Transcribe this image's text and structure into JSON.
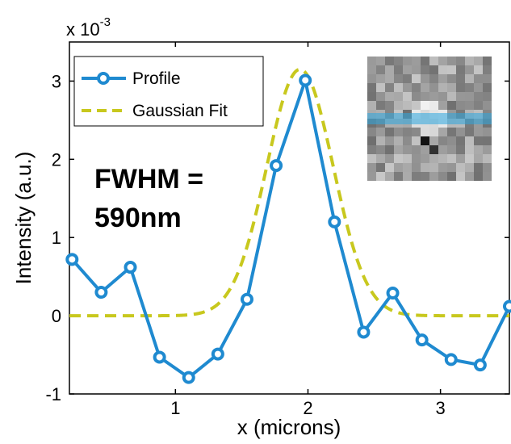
{
  "chart_data": {
    "type": "line",
    "xlabel": "x (microns)",
    "ylabel": "Intensity (a.u.)",
    "y_exponent": {
      "base": "x 10",
      "power": "-3"
    },
    "xlim": [
      0.2,
      3.52
    ],
    "ylim": [
      -1.0,
      3.5
    ],
    "x_ticks": [
      1,
      2,
      3
    ],
    "y_ticks": [
      -1,
      0,
      1,
      2,
      3
    ],
    "grid": false,
    "legend_position": "top-left",
    "series": [
      {
        "name": "Profile",
        "style": "solid line with circle markers",
        "color": "#1f8ad0",
        "x": [
          0.22,
          0.44,
          0.66,
          0.88,
          1.1,
          1.32,
          1.54,
          1.76,
          1.98,
          2.2,
          2.42,
          2.64,
          2.86,
          3.08,
          3.3,
          3.52
        ],
        "y": [
          0.72,
          0.3,
          0.62,
          -0.53,
          -0.79,
          -0.49,
          0.21,
          1.92,
          3.01,
          1.2,
          -0.21,
          0.29,
          -0.31,
          -0.56,
          -0.63,
          0.12
        ]
      },
      {
        "name": "Gaussian Fit",
        "style": "dashed line",
        "color": "#c8c81e",
        "amplitude": 3.15,
        "center": 1.94,
        "fwhm": 0.59,
        "offset": 0.0
      }
    ],
    "annotation": {
      "line1": "FWHM =",
      "line2": "590nm"
    },
    "inset": {
      "description_icon": "psf-image-inset"
    }
  }
}
